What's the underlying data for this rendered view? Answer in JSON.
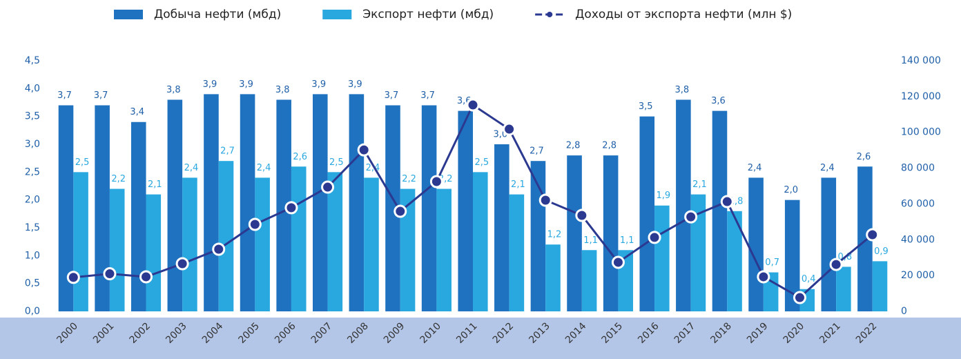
{
  "chart_data": {
    "type": "bar",
    "legend": "top",
    "grid": false,
    "band_color": "#b4c6e7",
    "categories": [
      "2000",
      "2001",
      "2002",
      "2003",
      "2004",
      "2005",
      "2006",
      "2007",
      "2008",
      "2009",
      "2010",
      "2011",
      "2012",
      "2013",
      "2014",
      "2015",
      "2016",
      "2017",
      "2018",
      "2019",
      "2020",
      "2021",
      "2022"
    ],
    "series": [
      {
        "name": "Добыча нефти (мбд)",
        "type": "bar",
        "color": "#1f72c0",
        "values": [
          3.7,
          3.7,
          3.4,
          3.8,
          3.9,
          3.9,
          3.8,
          3.9,
          3.9,
          3.7,
          3.7,
          3.6,
          3.0,
          2.7,
          2.8,
          2.8,
          3.5,
          3.8,
          3.6,
          2.4,
          2.0,
          2.4,
          2.6
        ],
        "value_labels": [
          "3,7",
          "3,7",
          "3,4",
          "3,8",
          "3,9",
          "3,9",
          "3,8",
          "3,9",
          "3,9",
          "3,7",
          "3,7",
          "3,6",
          "3,0",
          "2,7",
          "2,8",
          "2,8",
          "3,5",
          "3,8",
          "3,6",
          "2,4",
          "2,0",
          "2,4",
          "2,6"
        ]
      },
      {
        "name": "Экспорт нефти (мбд)",
        "type": "bar",
        "color": "#29a8e0",
        "values": [
          2.5,
          2.2,
          2.1,
          2.4,
          2.7,
          2.4,
          2.6,
          2.5,
          2.4,
          2.2,
          2.2,
          2.5,
          2.1,
          1.2,
          1.1,
          1.1,
          1.9,
          2.1,
          1.8,
          0.7,
          0.4,
          0.8,
          0.9
        ],
        "value_labels": [
          "2,5",
          "2,2",
          "2,1",
          "2,4",
          "2,7",
          "2,4",
          "2,6",
          "2,5",
          "2,4",
          "2,2",
          "2,2",
          "2,5",
          "2,1",
          "1,2",
          "1,1",
          "1,1",
          "1,9",
          "2,1",
          "1,8",
          "0,7",
          "0,4",
          "0,8",
          "0,9"
        ]
      },
      {
        "name": "Доходы от экспорта нефти (млн $)",
        "type": "line",
        "axis": "y2",
        "color": "#2b3990",
        "values": [
          19000,
          21000,
          19300,
          26600,
          34700,
          48600,
          57900,
          69400,
          90200,
          55900,
          72500,
          115300,
          101800,
          62100,
          53600,
          27400,
          41300,
          52800,
          61300,
          19300,
          7700,
          26200,
          42800
        ]
      }
    ],
    "ylim": [
      0,
      4.5
    ],
    "yticks": [
      {
        "value": 0,
        "label": "0,0"
      },
      {
        "value": 0.5,
        "label": "0,5"
      },
      {
        "value": 1,
        "label": "1,0"
      },
      {
        "value": 1.5,
        "label": "1,5"
      },
      {
        "value": 2,
        "label": "2,0"
      },
      {
        "value": 2.5,
        "label": "2,5"
      },
      {
        "value": 3,
        "label": "3,0"
      },
      {
        "value": 3.5,
        "label": "3,5"
      },
      {
        "value": 4,
        "label": "4,0"
      },
      {
        "value": 4.5,
        "label": "4,5"
      }
    ],
    "y2lim": [
      0,
      140000
    ],
    "y2ticks": [
      0,
      {
        "value": 20000,
        "label": "20 000"
      },
      {
        "value": 40000,
        "label": "40 000"
      },
      {
        "value": 60000,
        "label": "60 000"
      },
      {
        "value": 80000,
        "label": "80 000"
      },
      {
        "value": 100000,
        "label": "100 000"
      },
      {
        "value": 120000,
        "label": "120 000"
      },
      {
        "value": 140000,
        "label": "140 000"
      }
    ]
  }
}
